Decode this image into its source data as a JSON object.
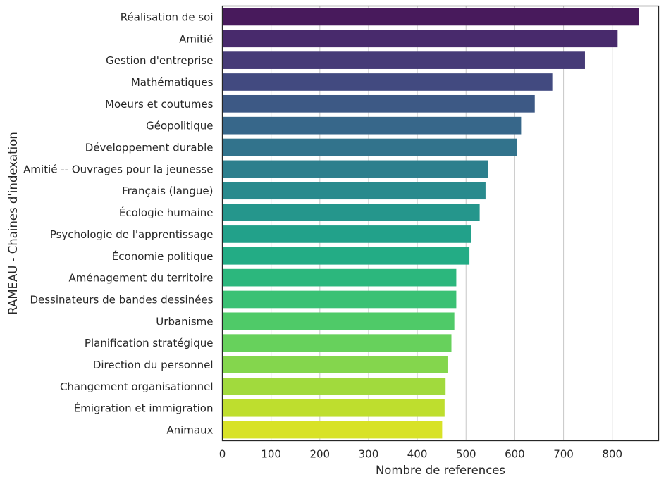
{
  "chart_data": {
    "type": "bar",
    "orientation": "horizontal",
    "xlabel": "Nombre de references",
    "ylabel": "RAMEAU - Chaines d'indexation",
    "xlim": [
      0,
      900
    ],
    "xticks": [
      0,
      100,
      200,
      300,
      400,
      500,
      600,
      700,
      800
    ],
    "grid": "vertical",
    "palette": "viridis",
    "categories": [
      "Réalisation de soi",
      "Amitié",
      "Gestion d'entreprise",
      "Mathématiques",
      "Moeurs et coutumes",
      "Géopolitique",
      "Développement durable",
      "Amitié -- Ouvrages pour la jeunesse",
      "Français (langue)",
      "Écologie humaine",
      "Psychologie de l'apprentissage",
      "Économie politique",
      "Aménagement du territoire",
      "Dessinateurs de bandes dessinées",
      "Urbanisme",
      "Planification stratégique",
      "Direction du personnel",
      "Changement organisationnel",
      "Émigration et immigration",
      "Animaux"
    ],
    "values": [
      854,
      811,
      744,
      677,
      641,
      613,
      604,
      545,
      540,
      528,
      510,
      507,
      480,
      480,
      476,
      470,
      462,
      458,
      456,
      451
    ],
    "colors": [
      "#481a5c",
      "#482a6c",
      "#463b77",
      "#424a80",
      "#3d5985",
      "#37678a",
      "#32738c",
      "#2d7f8d",
      "#298a8d",
      "#25968c",
      "#22a18a",
      "#23ac85",
      "#2cb77d",
      "#3ac174",
      "#4fca68",
      "#67d15c",
      "#84d64d",
      "#a1da3d",
      "#bede2e",
      "#d8e227"
    ]
  }
}
